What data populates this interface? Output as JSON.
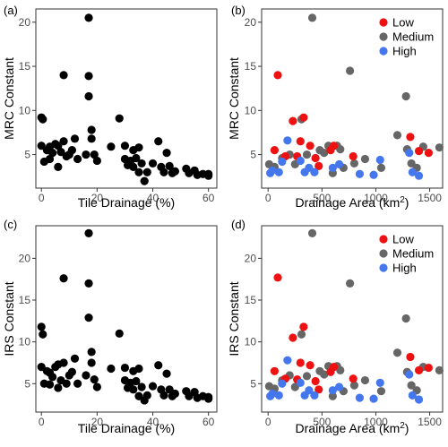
{
  "colors": {
    "black_points": "#000000",
    "low": "#ee1111",
    "medium": "#666666",
    "high": "#4477ee"
  },
  "chart_data": [
    {
      "panel": "(a)",
      "type": "scatter",
      "xlabel": "Tile Drainage (%)",
      "ylabel": "MRC Constant",
      "xlim": [
        -2,
        63
      ],
      "ylim": [
        1.2,
        21.5
      ],
      "xticks": [
        0,
        20,
        40,
        60
      ],
      "yticks": [
        5,
        10,
        15,
        20
      ],
      "grid": false,
      "points": [
        [
          0,
          9.2
        ],
        [
          0.5,
          9.0
        ],
        [
          0,
          6.0
        ],
        [
          1,
          4.2
        ],
        [
          2,
          5.5
        ],
        [
          3,
          5.9
        ],
        [
          3,
          4.5
        ],
        [
          4,
          5.2
        ],
        [
          5,
          6.2
        ],
        [
          6,
          3.6
        ],
        [
          6,
          6.0
        ],
        [
          7,
          5.3
        ],
        [
          8,
          6.5
        ],
        [
          8,
          14.0
        ],
        [
          9,
          4.8
        ],
        [
          10,
          5.0
        ],
        [
          11,
          5.5
        ],
        [
          12,
          6.8
        ],
        [
          13,
          4.5
        ],
        [
          16,
          5.0
        ],
        [
          17,
          13.9
        ],
        [
          17,
          11.6
        ],
        [
          17,
          20.5
        ],
        [
          18,
          7.8
        ],
        [
          18,
          6.8
        ],
        [
          19,
          5.0
        ],
        [
          20,
          4.3
        ],
        [
          25,
          5.9
        ],
        [
          28,
          9.1
        ],
        [
          30,
          4.5
        ],
        [
          30,
          6.0
        ],
        [
          31,
          3.8
        ],
        [
          32,
          4.3
        ],
        [
          33,
          5.5
        ],
        [
          33,
          3.6
        ],
        [
          34,
          4.6
        ],
        [
          35,
          5.8
        ],
        [
          35,
          3.0
        ],
        [
          36,
          4.0
        ],
        [
          37,
          2.0
        ],
        [
          38,
          3.0
        ],
        [
          40,
          4.0
        ],
        [
          42,
          6.5
        ],
        [
          43,
          3.6
        ],
        [
          44,
          3.0
        ],
        [
          45,
          5.2
        ],
        [
          46,
          3.7
        ],
        [
          47,
          2.9
        ],
        [
          48,
          3.1
        ],
        [
          52,
          3.4
        ],
        [
          53,
          2.9
        ],
        [
          55,
          3.2
        ],
        [
          56,
          2.7
        ],
        [
          58,
          2.8
        ],
        [
          60,
          2.8
        ],
        [
          60,
          2.6
        ]
      ]
    },
    {
      "panel": "(b)",
      "type": "scatter",
      "xlabel_main": "Drainage Area (km",
      "xlabel_sup": "2",
      "xlabel_end": ")",
      "ylabel": "MRC Constant",
      "xlim": [
        -60,
        1620
      ],
      "ylim": [
        1.2,
        21.5
      ],
      "xticks": [
        0,
        500,
        1000,
        1500
      ],
      "yticks": [
        5,
        10,
        15,
        20
      ],
      "grid": false,
      "legend": {
        "position": "top-right",
        "entries": [
          "Low",
          "Medium",
          "High"
        ]
      },
      "series": [
        {
          "name": "Low",
          "points": [
            [
              90,
              14.0
            ],
            [
              60,
              5.5
            ],
            [
              160,
              4.8
            ],
            [
              230,
              8.8
            ],
            [
              270,
              4.8
            ],
            [
              300,
              6.5
            ],
            [
              330,
              9.2
            ],
            [
              390,
              6.0
            ],
            [
              440,
              4.6
            ],
            [
              470,
              3.7
            ],
            [
              580,
              5.5
            ],
            [
              610,
              6.0
            ],
            [
              790,
              4.8
            ],
            [
              1320,
              7.0
            ],
            [
              1400,
              5.4
            ],
            [
              1490,
              5.2
            ]
          ]
        },
        {
          "name": "Medium",
          "points": [
            [
              10,
              3.9
            ],
            [
              60,
              3.6
            ],
            [
              130,
              4.6
            ],
            [
              200,
              5.0
            ],
            [
              250,
              3.9
            ],
            [
              310,
              9.0
            ],
            [
              360,
              5.0
            ],
            [
              410,
              20.5
            ],
            [
              480,
              5.5
            ],
            [
              520,
              5.2
            ],
            [
              560,
              6.0
            ],
            [
              600,
              2.9
            ],
            [
              640,
              6.0
            ],
            [
              670,
              5.6
            ],
            [
              700,
              3.5
            ],
            [
              760,
              14.5
            ],
            [
              800,
              4.0
            ],
            [
              900,
              4.5
            ],
            [
              1050,
              3.5
            ],
            [
              1200,
              7.2
            ],
            [
              1280,
              11.6
            ],
            [
              1290,
              5.6
            ],
            [
              1330,
              4.0
            ],
            [
              1380,
              3.5
            ],
            [
              1440,
              5.9
            ],
            [
              1590,
              5.8
            ]
          ]
        },
        {
          "name": "High",
          "points": [
            [
              20,
              2.9
            ],
            [
              40,
              3.2
            ],
            [
              100,
              3.0
            ],
            [
              130,
              4.2
            ],
            [
              180,
              6.6
            ],
            [
              300,
              4.3
            ],
            [
              340,
              3.0
            ],
            [
              380,
              3.5
            ],
            [
              430,
              3.0
            ],
            [
              600,
              3.5
            ],
            [
              660,
              3.9
            ],
            [
              850,
              2.8
            ],
            [
              980,
              2.7
            ],
            [
              1040,
              4.4
            ],
            [
              1310,
              5.2
            ],
            [
              1340,
              3.0
            ],
            [
              1400,
              2.6
            ]
          ]
        }
      ]
    },
    {
      "panel": "(c)",
      "type": "scatter",
      "xlabel": "Tile Drainage (%)",
      "ylabel": "IRS Constant",
      "xlim": [
        -2,
        63
      ],
      "ylim": [
        1.6,
        23.9
      ],
      "xticks": [
        0,
        20,
        40,
        60
      ],
      "yticks": [
        5,
        10,
        15,
        20
      ],
      "grid": false,
      "points": [
        [
          0,
          11.8
        ],
        [
          0.5,
          10.9
        ],
        [
          0,
          7.0
        ],
        [
          1,
          5.0
        ],
        [
          2,
          6.5
        ],
        [
          3,
          6.3
        ],
        [
          3,
          4.9
        ],
        [
          4,
          5.8
        ],
        [
          5,
          7.0
        ],
        [
          6,
          4.5
        ],
        [
          6,
          7.3
        ],
        [
          7,
          5.4
        ],
        [
          8,
          7.5
        ],
        [
          8,
          17.6
        ],
        [
          9,
          5.0
        ],
        [
          10,
          6.0
        ],
        [
          11,
          6.4
        ],
        [
          12,
          8.0
        ],
        [
          13,
          5.0
        ],
        [
          16,
          6.0
        ],
        [
          17,
          17.0
        ],
        [
          17,
          12.9
        ],
        [
          17,
          23.0
        ],
        [
          18,
          8.8
        ],
        [
          18,
          7.5
        ],
        [
          19,
          5.5
        ],
        [
          20,
          4.6
        ],
        [
          25,
          6.8
        ],
        [
          28,
          11.0
        ],
        [
          30,
          5.4
        ],
        [
          30,
          6.9
        ],
        [
          31,
          4.5
        ],
        [
          32,
          5.1
        ],
        [
          33,
          6.5
        ],
        [
          33,
          4.3
        ],
        [
          34,
          5.3
        ],
        [
          35,
          6.8
        ],
        [
          35,
          3.5
        ],
        [
          36,
          4.6
        ],
        [
          37,
          3.0
        ],
        [
          38,
          3.6
        ],
        [
          40,
          4.7
        ],
        [
          42,
          7.2
        ],
        [
          43,
          4.3
        ],
        [
          44,
          3.6
        ],
        [
          45,
          6.2
        ],
        [
          46,
          4.3
        ],
        [
          47,
          3.5
        ],
        [
          48,
          3.8
        ],
        [
          52,
          4.1
        ],
        [
          53,
          3.5
        ],
        [
          55,
          4.0
        ],
        [
          56,
          3.3
        ],
        [
          58,
          3.5
        ],
        [
          60,
          3.4
        ],
        [
          60,
          3.2
        ]
      ]
    },
    {
      "panel": "(d)",
      "type": "scatter",
      "xlabel_main": "Drainage Area (km",
      "xlabel_sup": "2",
      "xlabel_end": ")",
      "ylabel": "IRS Constant",
      "xlim": [
        -60,
        1620
      ],
      "ylim": [
        1.6,
        23.9
      ],
      "xticks": [
        0,
        500,
        1000,
        1500
      ],
      "yticks": [
        5,
        10,
        15,
        20
      ],
      "grid": false,
      "legend": {
        "position": "top-right",
        "entries": [
          "Low",
          "Medium",
          "High"
        ]
      },
      "series": [
        {
          "name": "Low",
          "points": [
            [
              90,
              17.7
            ],
            [
              60,
              6.5
            ],
            [
              160,
              5.6
            ],
            [
              230,
              10.5
            ],
            [
              270,
              5.5
            ],
            [
              300,
              7.5
            ],
            [
              330,
              11.8
            ],
            [
              390,
              7.2
            ],
            [
              440,
              5.3
            ],
            [
              470,
              4.3
            ],
            [
              580,
              6.4
            ],
            [
              610,
              7.0
            ],
            [
              790,
              5.6
            ],
            [
              1320,
              8.2
            ],
            [
              1400,
              6.6
            ],
            [
              1490,
              6.9
            ]
          ]
        },
        {
          "name": "Medium",
          "points": [
            [
              10,
              4.7
            ],
            [
              60,
              4.4
            ],
            [
              130,
              5.4
            ],
            [
              200,
              6.0
            ],
            [
              250,
              4.6
            ],
            [
              310,
              10.9
            ],
            [
              360,
              5.9
            ],
            [
              410,
              23.0
            ],
            [
              480,
              6.5
            ],
            [
              520,
              6.1
            ],
            [
              560,
              7.1
            ],
            [
              600,
              3.5
            ],
            [
              640,
              7.1
            ],
            [
              670,
              6.6
            ],
            [
              700,
              4.1
            ],
            [
              760,
              17.0
            ],
            [
              800,
              4.8
            ],
            [
              900,
              5.4
            ],
            [
              1050,
              4.1
            ],
            [
              1200,
              8.7
            ],
            [
              1280,
              12.8
            ],
            [
              1290,
              6.4
            ],
            [
              1330,
              4.8
            ],
            [
              1380,
              4.2
            ],
            [
              1440,
              7.0
            ],
            [
              1590,
              6.6
            ]
          ]
        },
        {
          "name": "High",
          "points": [
            [
              20,
              3.5
            ],
            [
              40,
              3.8
            ],
            [
              100,
              3.6
            ],
            [
              130,
              5.0
            ],
            [
              180,
              7.8
            ],
            [
              300,
              5.1
            ],
            [
              340,
              3.6
            ],
            [
              380,
              4.2
            ],
            [
              430,
              3.6
            ],
            [
              600,
              4.2
            ],
            [
              660,
              4.6
            ],
            [
              850,
              3.3
            ],
            [
              980,
              3.2
            ],
            [
              1040,
              5.1
            ],
            [
              1310,
              6.1
            ],
            [
              1340,
              3.6
            ],
            [
              1400,
              3.1
            ]
          ]
        }
      ]
    }
  ]
}
